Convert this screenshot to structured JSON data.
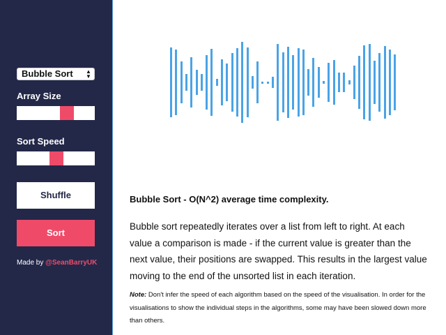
{
  "sidebar": {
    "algorithm_select": {
      "selected": "Bubble Sort"
    },
    "array_size": {
      "label": "Array Size",
      "value": 0.64
    },
    "sort_speed": {
      "label": "Sort Speed",
      "value": 0.51
    },
    "shuffle_label": "Shuffle",
    "sort_label": "Sort",
    "credit": {
      "prefix": "Made by ",
      "handle": "@SeanBarryUK"
    }
  },
  "visualisation": {
    "color": "#4aa3e6",
    "bars": [
      0.84,
      0.78,
      0.5,
      0.2,
      0.6,
      0.3,
      0.2,
      0.65,
      0.8,
      0.09,
      0.55,
      0.45,
      0.7,
      0.81,
      0.96,
      0.84,
      0.15,
      0.5,
      0.02,
      0.02,
      0.14,
      0.92,
      0.71,
      0.85,
      0.65,
      0.81,
      0.78,
      0.31,
      0.58,
      0.37,
      0.03,
      0.46,
      0.54,
      0.23,
      0.24,
      0.05,
      0.4,
      0.64,
      0.88,
      0.92,
      0.52,
      0.7,
      0.86,
      0.78,
      0.66
    ]
  },
  "main": {
    "title": "Bubble Sort - O(N^2) average time complexity.",
    "description": "Bubble sort repeatedly iterates over a list from left to right. At each value a comparison is made - if the current value is greater than the next value, their positions are swapped. This results in the largest value moving to the end of the unsorted list in each iteration.",
    "note_label": "Note:",
    "note_text": " Don't infer the speed of each algorithm based on the speed of the visualisation. In order for the visualisations to show the individual steps in the algorithms, some may have been slowed down more than others."
  }
}
